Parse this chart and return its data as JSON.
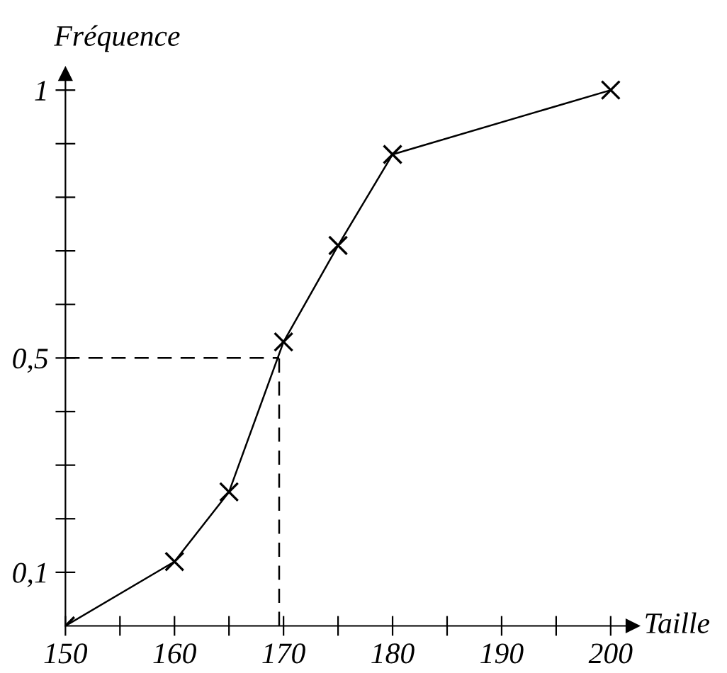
{
  "chart_data": {
    "type": "line",
    "xlabel": "Taille",
    "ylabel": "Fréquence",
    "x": [
      150,
      160,
      165,
      170,
      175,
      180,
      200
    ],
    "series": [
      {
        "color": "#000000",
        "values": [
          0,
          0.12,
          0.25,
          0.53,
          0.71,
          0.88,
          1
        ]
      }
    ],
    "xlim": [
      150,
      202
    ],
    "ylim": [
      0,
      1.03
    ],
    "xticks": [
      150,
      {
        "value": 155,
        "label": null
      },
      160,
      {
        "value": 165,
        "label": null
      },
      170,
      {
        "value": 175,
        "label": null
      },
      180,
      {
        "value": 185,
        "label": null
      },
      190,
      {
        "value": 195,
        "label": null
      },
      200
    ],
    "yticks": [
      {
        "value": 0.1,
        "label": "0,1"
      },
      {
        "value": 0.2,
        "label": null
      },
      {
        "value": 0.3,
        "label": null
      },
      {
        "value": 0.4,
        "label": null
      },
      {
        "value": 0.5,
        "label": "0,5"
      },
      {
        "value": 0.6,
        "label": null
      },
      {
        "value": 0.7,
        "label": null
      },
      {
        "value": 0.8,
        "label": null
      },
      {
        "value": 0.9,
        "label": null
      },
      {
        "value": 1,
        "label": "1"
      }
    ],
    "ref_lines": [
      {
        "axis": "y",
        "value": 0.5,
        "line_style": "dashed"
      },
      {
        "axis": "x",
        "value": 169.6,
        "line_style": "dashed"
      }
    ],
    "marker": "cross",
    "line_style": "solid",
    "grid": false,
    "legend": false
  }
}
